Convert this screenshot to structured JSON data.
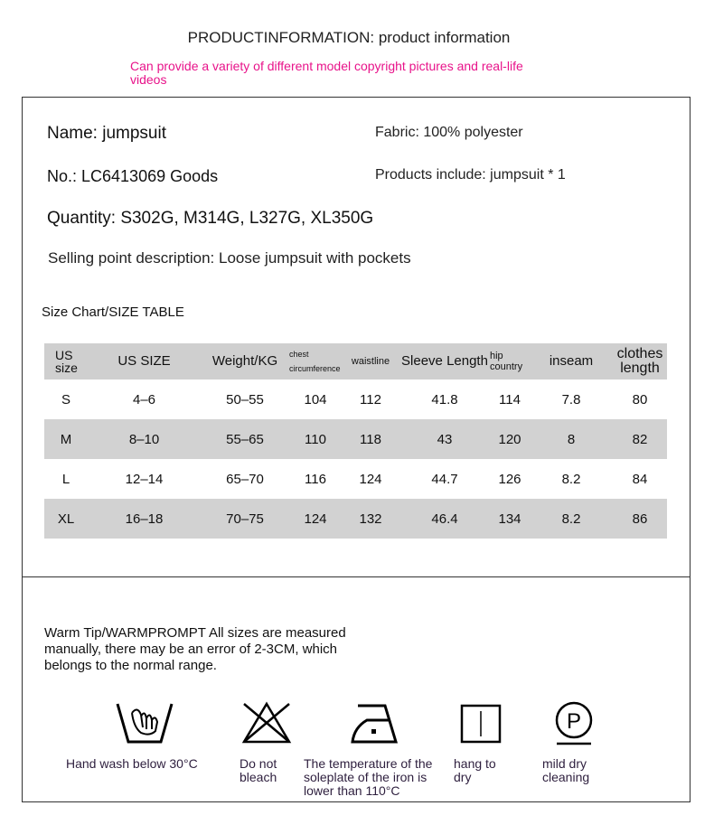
{
  "header": {
    "title": "PRODUCTINFORMATION: product information",
    "note": "Can provide a variety of different model copyright pictures and real-life videos"
  },
  "info": {
    "name": "Name: jumpsuit",
    "fabric": "Fabric: 100% polyester",
    "number": "No.: LC6413069 Goods",
    "includes": "Products include: jumpsuit * 1",
    "quantity": "Quantity: S302G, M314G, L327G, XL350G",
    "selling_point": "Selling point description: Loose jumpsuit with pockets"
  },
  "size_chart": {
    "title": "Size Chart/SIZE TABLE",
    "headers": [
      "US size",
      "US SIZE",
      "Weight/KG",
      "chest circumference",
      "waistline",
      "Sleeve Length",
      "hip country",
      "inseam",
      "clothes length"
    ],
    "rows": [
      [
        "S",
        "4–6",
        "50–55",
        "104",
        "112",
        "41.8",
        "114",
        "7.8",
        "80"
      ],
      [
        "M",
        "8–10",
        "55–65",
        "110",
        "118",
        "43",
        "120",
        "8",
        "82"
      ],
      [
        "L",
        "12–14",
        "65–70",
        "116",
        "124",
        "44.7",
        "126",
        "8.2",
        "84"
      ],
      [
        "XL",
        "16–18",
        "70–75",
        "124",
        "132",
        "46.4",
        "134",
        "8.2",
        "86"
      ]
    ]
  },
  "tip": "Warm Tip/WARMPROMPT All sizes are measured manually, there may be an error of 2-3CM, which belongs to the normal range.",
  "care": [
    {
      "icon": "hand-wash-icon",
      "label": "Hand wash below 30°C"
    },
    {
      "icon": "no-bleach-icon",
      "label": "Do not bleach"
    },
    {
      "icon": "iron-low-icon",
      "label": "The temperature of the soleplate of the iron is lower than 110°C"
    },
    {
      "icon": "hang-dry-icon",
      "label": "hang to dry"
    },
    {
      "icon": "dry-clean-icon",
      "label": "mild dry cleaning"
    }
  ],
  "colors": {
    "accent": "#e8138a",
    "row_gray": "#d2d2d2"
  }
}
